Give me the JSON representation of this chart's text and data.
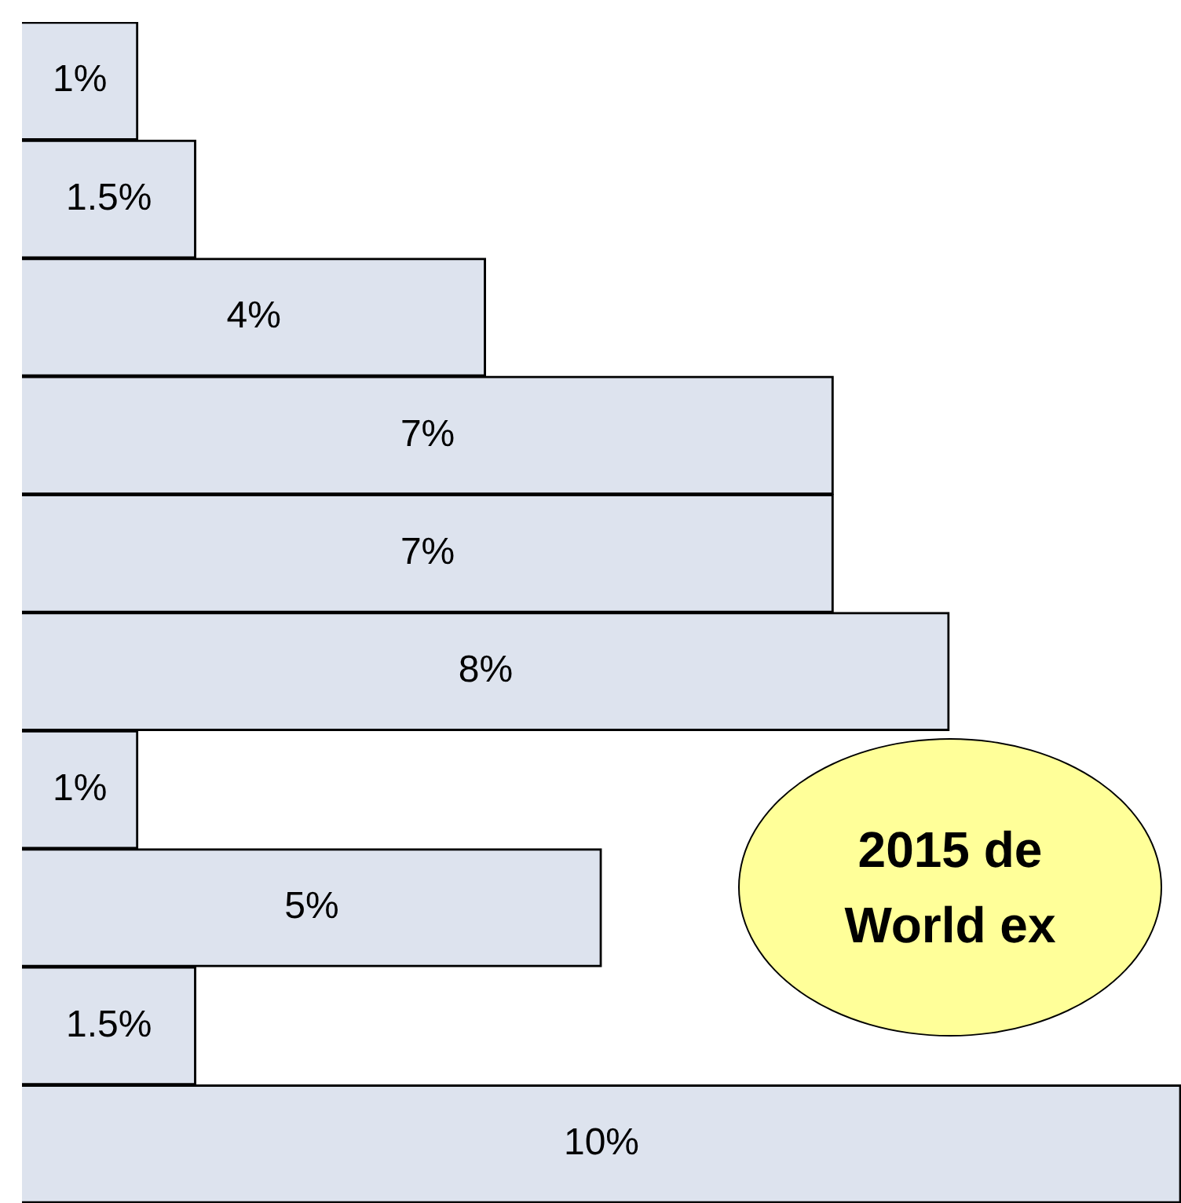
{
  "chart_data": {
    "type": "bar",
    "orientation": "horizontal",
    "categories": [
      null,
      null,
      null,
      null,
      null,
      null,
      null,
      null,
      null,
      null
    ],
    "values": [
      1,
      1.5,
      4,
      7,
      7,
      8,
      1,
      5,
      1.5,
      10
    ],
    "value_labels": [
      "1%",
      "1.5%",
      "4%",
      "7%",
      "7%",
      "8%",
      "1%",
      "5%",
      "1.5%",
      "10%"
    ],
    "color": "#dde3ee",
    "annotations": [
      "2015 de",
      "World ex"
    ]
  }
}
